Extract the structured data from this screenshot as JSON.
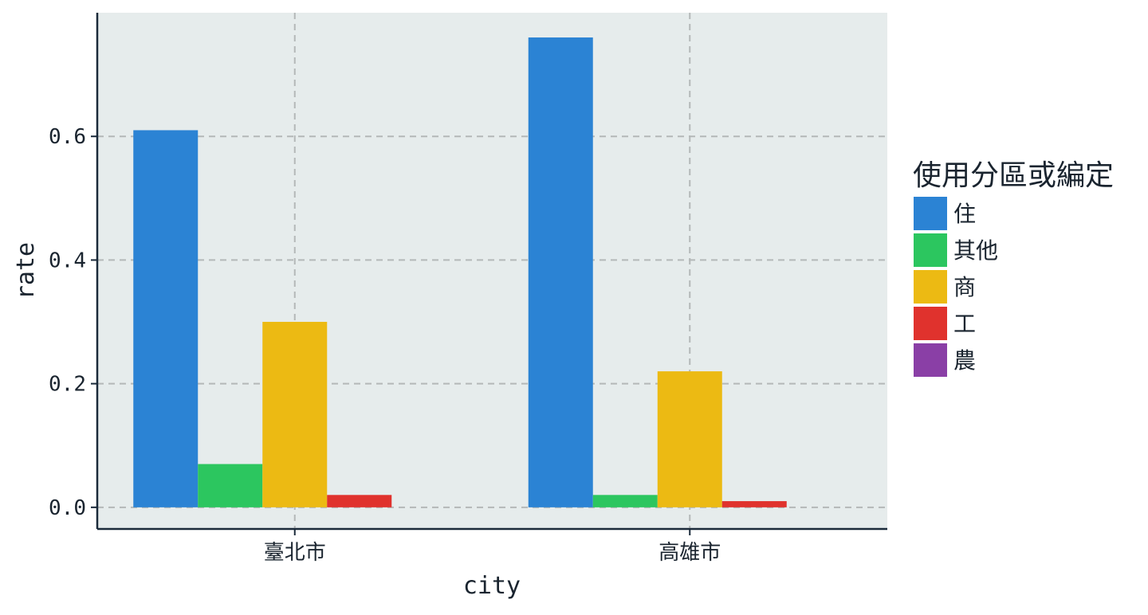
{
  "chart_data": {
    "type": "bar",
    "title": "",
    "xlabel": "city",
    "ylabel": "rate",
    "categories": [
      "臺北市",
      "高雄市"
    ],
    "series": [
      {
        "name": "住",
        "color": "#2b83d4",
        "values": [
          0.61,
          0.76
        ]
      },
      {
        "name": "其他",
        "color": "#2cc65f",
        "values": [
          0.07,
          0.02
        ]
      },
      {
        "name": "商",
        "color": "#ecba13",
        "values": [
          0.3,
          0.22
        ]
      },
      {
        "name": "工",
        "color": "#e0322d",
        "values": [
          0.02,
          0.01
        ]
      },
      {
        "name": "農",
        "color": "#8a3fa6",
        "values": [
          0.0,
          0.0
        ]
      }
    ],
    "ylim": [
      -0.035,
      0.8
    ],
    "yticks": [
      0.0,
      0.2,
      0.4,
      0.6
    ],
    "ytick_labels": [
      "0.0",
      "0.2",
      "0.4",
      "0.6"
    ],
    "grid": true,
    "legend_title": "使用分區或編定",
    "legend_position": "right",
    "panel_background": "#e6ecec",
    "grid_color": "#b4b8b8",
    "axis_color": "#1a2a3a"
  }
}
